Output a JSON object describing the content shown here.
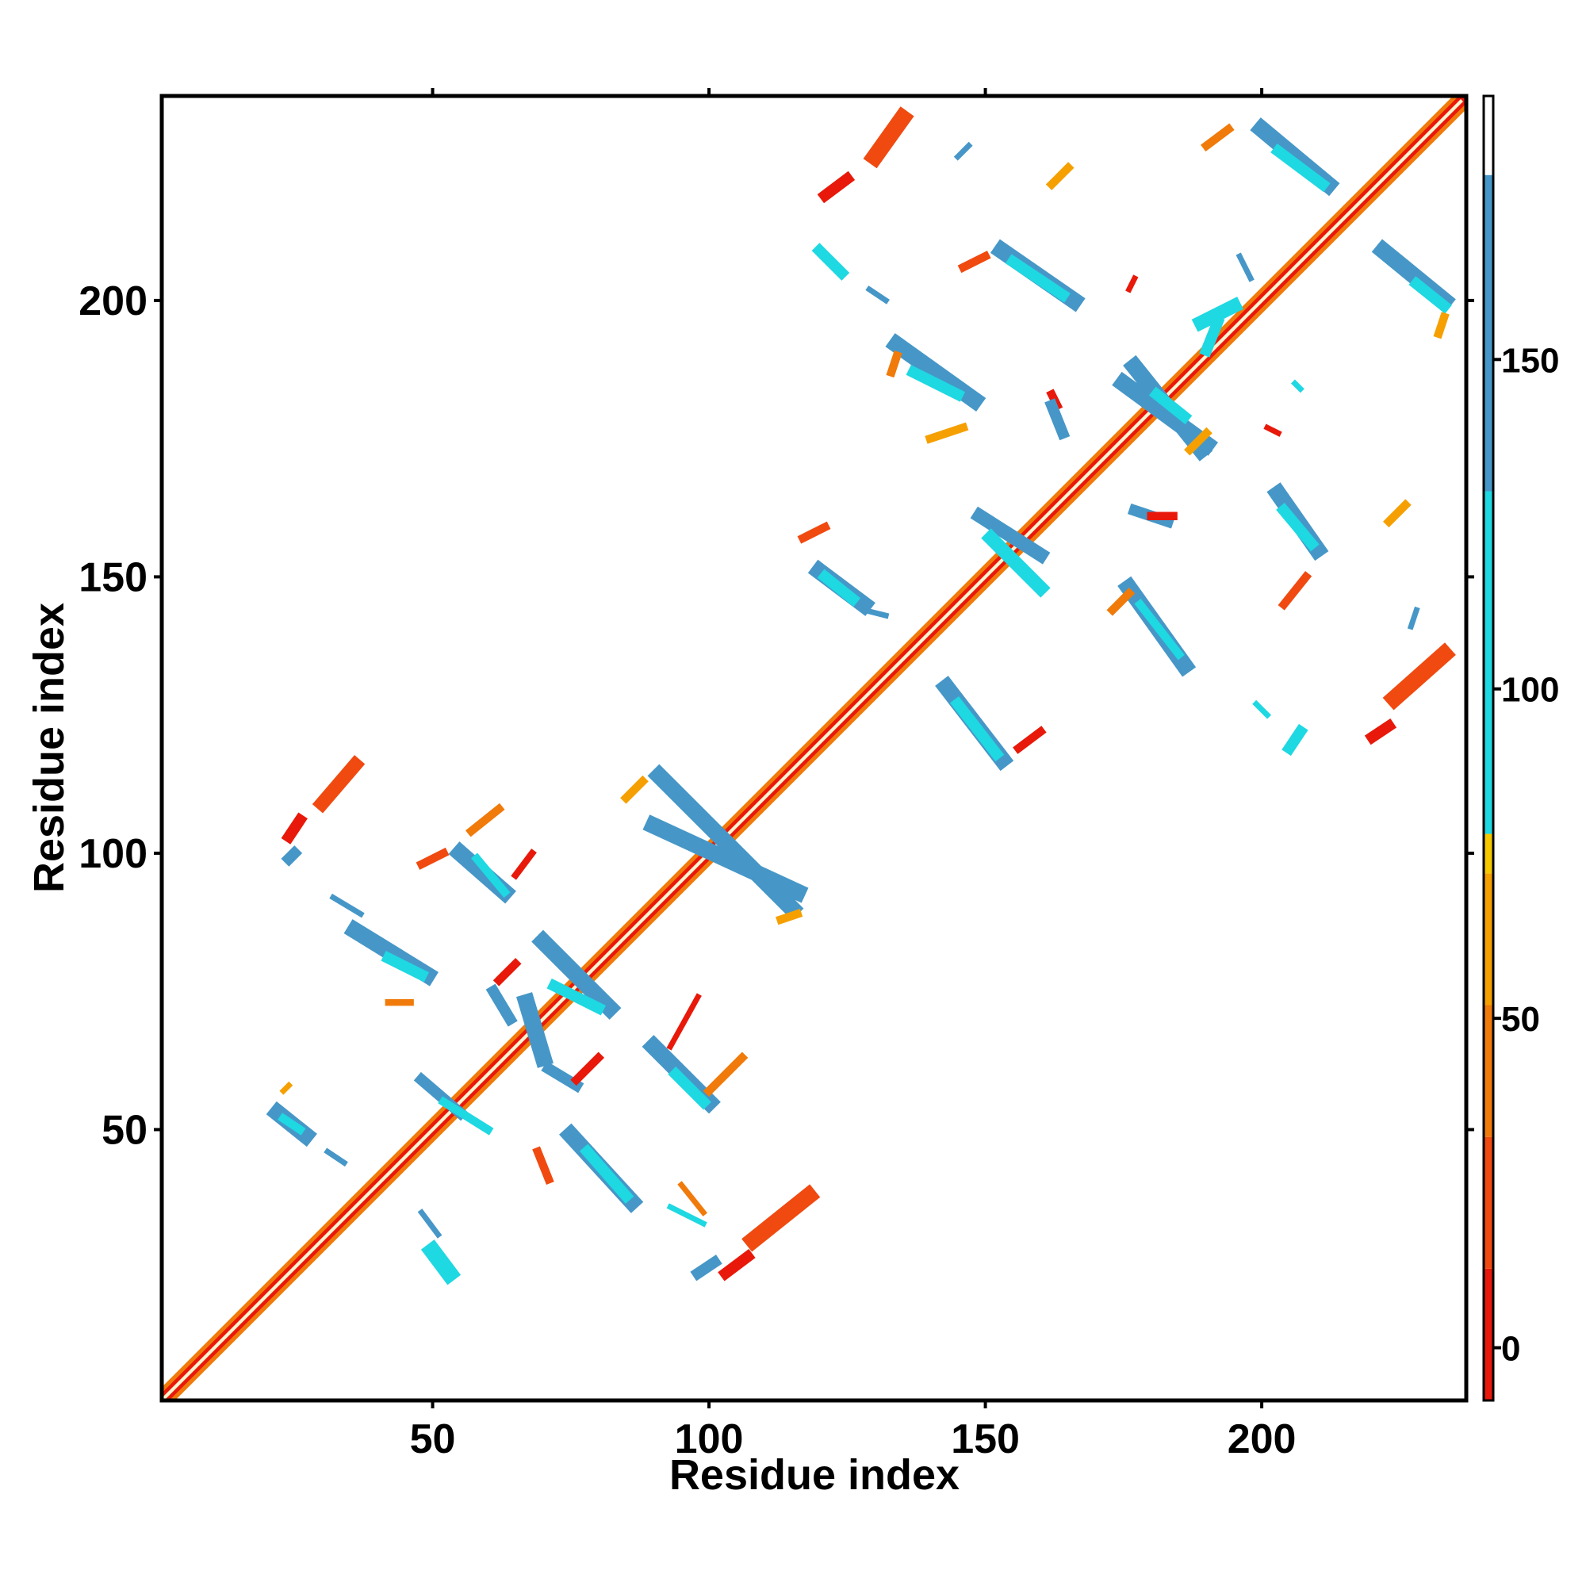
{
  "chart_data": {
    "type": "heatmap",
    "xlabel": "Residue index",
    "ylabel": "Residue index",
    "xlim": [
      1,
      237
    ],
    "ylim": [
      1,
      237
    ],
    "xticks": [
      50,
      100,
      150,
      200
    ],
    "yticks": [
      50,
      100,
      150,
      200
    ],
    "colorbar": {
      "range": [
        -8,
        190
      ],
      "ticks": [
        0,
        50,
        100,
        150
      ],
      "bands": [
        {
          "from": -8,
          "to": 12,
          "color": "#e8190a"
        },
        {
          "from": 12,
          "to": 32,
          "color": "#f04a10"
        },
        {
          "from": 32,
          "to": 52,
          "color": "#f07a0a"
        },
        {
          "from": 52,
          "to": 72,
          "color": "#f5a000"
        },
        {
          "from": 72,
          "to": 78,
          "color": "#f5c800"
        },
        {
          "from": 78,
          "to": 130,
          "color": "#1ed8e2"
        },
        {
          "from": 130,
          "to": 178,
          "color": "#4697c8"
        },
        {
          "from": 178,
          "to": 190,
          "color": "#ffffff"
        }
      ]
    },
    "diagonal": {
      "from": 1,
      "to": 236,
      "core_color": "#fff3cf",
      "inner_color": "#e8190a",
      "outer_color": "#f07a0a"
    },
    "segments": [
      {
        "from": [
          30,
          109
        ],
        "to": [
          36,
          116
        ],
        "width": 2.5,
        "color": "#f04a10"
      },
      {
        "from": [
          24,
          103
        ],
        "to": [
          26,
          106
        ],
        "width": 2,
        "color": "#e8190a"
      },
      {
        "from": [
          24,
          99
        ],
        "to": [
          25,
          100
        ],
        "width": 2,
        "color": "#4697c8"
      },
      {
        "from": [
          55,
          100
        ],
        "to": [
          63,
          93
        ],
        "width": 3,
        "color": "#4697c8"
      },
      {
        "from": [
          58,
          99
        ],
        "to": [
          63,
          93
        ],
        "width": 1.5,
        "color": "#1ed8e2"
      },
      {
        "from": [
          57,
          104
        ],
        "to": [
          62,
          108
        ],
        "width": 1.5,
        "color": "#f07a0a"
      },
      {
        "from": [
          48,
          98
        ],
        "to": [
          52,
          100
        ],
        "width": 1.5,
        "color": "#f04a10"
      },
      {
        "from": [
          65,
          96
        ],
        "to": [
          68,
          100
        ],
        "width": 1.2,
        "color": "#e8190a"
      },
      {
        "from": [
          36,
          86
        ],
        "to": [
          49,
          78
        ],
        "width": 3,
        "color": "#4697c8"
      },
      {
        "from": [
          42,
          81
        ],
        "to": [
          48,
          78
        ],
        "width": 2,
        "color": "#1ed8e2"
      },
      {
        "from": [
          32,
          92
        ],
        "to": [
          37,
          89
        ],
        "width": 1,
        "color": "#4697c8"
      },
      {
        "from": [
          42,
          73
        ],
        "to": [
          46,
          73
        ],
        "width": 1.2,
        "color": "#f07a0a"
      },
      {
        "from": [
          61,
          75
        ],
        "to": [
          64,
          70
        ],
        "width": 2,
        "color": "#4697c8"
      },
      {
        "from": [
          62,
          77
        ],
        "to": [
          65,
          80
        ],
        "width": 1.5,
        "color": "#e8190a"
      },
      {
        "from": [
          70,
          84
        ],
        "to": [
          82,
          72
        ],
        "width": 3,
        "color": "#4697c8"
      },
      {
        "from": [
          72,
          76
        ],
        "to": [
          80,
          72
        ],
        "width": 2,
        "color": "#1ed8e2"
      },
      {
        "from": [
          67,
          73
        ],
        "to": [
          70,
          63
        ],
        "width": 3,
        "color": "#4697c8"
      },
      {
        "from": [
          71,
          61
        ],
        "to": [
          76,
          58
        ],
        "width": 2,
        "color": "#4697c8"
      },
      {
        "from": [
          76,
          59
        ],
        "to": [
          80,
          63
        ],
        "width": 1.5,
        "color": "#e8190a"
      },
      {
        "from": [
          48,
          59
        ],
        "to": [
          55,
          53
        ],
        "width": 2,
        "color": "#4697c8"
      },
      {
        "from": [
          52,
          55
        ],
        "to": [
          60,
          50
        ],
        "width": 1.5,
        "color": "#1ed8e2"
      },
      {
        "from": [
          22,
          53
        ],
        "to": [
          27,
          49
        ],
        "width": 3,
        "color": "#4697c8"
      },
      {
        "from": [
          23,
          52
        ],
        "to": [
          26,
          50
        ],
        "width": 1.5,
        "color": "#1ed8e2"
      },
      {
        "from": [
          23,
          57
        ],
        "to": [
          24,
          58
        ],
        "width": 1,
        "color": "#f5a000"
      },
      {
        "from": [
          31,
          46
        ],
        "to": [
          34,
          44
        ],
        "width": 1,
        "color": "#4697c8"
      },
      {
        "from": [
          90,
          65
        ],
        "to": [
          100,
          55
        ],
        "width": 3,
        "color": "#4697c8"
      },
      {
        "from": [
          94,
          60
        ],
        "to": [
          99,
          55
        ],
        "width": 2,
        "color": "#1ed8e2"
      },
      {
        "from": [
          100,
          57
        ],
        "to": [
          106,
          63
        ],
        "width": 1.5,
        "color": "#f07a0a"
      },
      {
        "from": [
          93,
          65
        ],
        "to": [
          98,
          74
        ],
        "width": 1,
        "color": "#e8190a"
      },
      {
        "from": [
          75,
          49
        ],
        "to": [
          86,
          37
        ],
        "width": 3,
        "color": "#4697c8"
      },
      {
        "from": [
          78,
          46
        ],
        "to": [
          85,
          38
        ],
        "width": 2,
        "color": "#1ed8e2"
      },
      {
        "from": [
          69,
          46
        ],
        "to": [
          71,
          41
        ],
        "width": 1.5,
        "color": "#f04a10"
      },
      {
        "from": [
          95,
          40
        ],
        "to": [
          99,
          35
        ],
        "width": 1,
        "color": "#f07a0a"
      },
      {
        "from": [
          93,
          36
        ],
        "to": [
          99,
          33
        ],
        "width": 1,
        "color": "#1ed8e2"
      },
      {
        "from": [
          108,
          30
        ],
        "to": [
          118,
          38
        ],
        "width": 3,
        "color": "#f04a10"
      },
      {
        "from": [
          98,
          24
        ],
        "to": [
          101,
          26
        ],
        "width": 2,
        "color": "#4697c8"
      },
      {
        "from": [
          103,
          24
        ],
        "to": [
          107,
          27
        ],
        "width": 2,
        "color": "#e8190a"
      },
      {
        "from": [
          50,
          28
        ],
        "to": [
          53,
          24
        ],
        "width": 3,
        "color": "#1ed8e2"
      },
      {
        "from": [
          48,
          35
        ],
        "to": [
          51,
          31
        ],
        "width": 1,
        "color": "#4697c8"
      },
      {
        "from": [
          90,
          105
        ],
        "to": [
          116,
          93
        ],
        "width": 3,
        "color": "#4697c8"
      },
      {
        "from": [
          91,
          114
        ],
        "to": [
          115,
          90
        ],
        "width": 3,
        "color": "#4697c8"
      },
      {
        "from": [
          85,
          110
        ],
        "to": [
          88,
          113
        ],
        "width": 1.5,
        "color": "#f5a000"
      },
      {
        "from": [
          113,
          88
        ],
        "to": [
          116,
          89
        ],
        "width": 1.5,
        "color": "#f5a000"
      },
      {
        "from": [
          143,
          130
        ],
        "to": [
          153,
          117
        ],
        "width": 3,
        "color": "#4697c8"
      },
      {
        "from": [
          145,
          127
        ],
        "to": [
          152,
          118
        ],
        "width": 2,
        "color": "#1ed8e2"
      },
      {
        "from": [
          156,
          119
        ],
        "to": [
          160,
          122
        ],
        "width": 1.5,
        "color": "#e8190a"
      },
      {
        "from": [
          120,
          151
        ],
        "to": [
          128,
          145
        ],
        "width": 3,
        "color": "#4697c8"
      },
      {
        "from": [
          121,
          150
        ],
        "to": [
          126,
          146
        ],
        "width": 2,
        "color": "#1ed8e2"
      },
      {
        "from": [
          117,
          157
        ],
        "to": [
          121,
          159
        ],
        "width": 1.5,
        "color": "#f04a10"
      },
      {
        "from": [
          128,
          144
        ],
        "to": [
          132,
          143
        ],
        "width": 1,
        "color": "#4697c8"
      },
      {
        "from": [
          149,
          161
        ],
        "to": [
          160,
          154
        ],
        "width": 2.5,
        "color": "#4697c8"
      },
      {
        "from": [
          151,
          157
        ],
        "to": [
          160,
          148
        ],
        "width": 2.5,
        "color": "#1ed8e2"
      },
      {
        "from": [
          176,
          148
        ],
        "to": [
          186,
          134
        ],
        "width": 3,
        "color": "#4697c8"
      },
      {
        "from": [
          178,
          145
        ],
        "to": [
          185,
          136
        ],
        "width": 1.5,
        "color": "#1ed8e2"
      },
      {
        "from": [
          173,
          144
        ],
        "to": [
          176,
          147
        ],
        "width": 1.5,
        "color": "#f07a0a"
      },
      {
        "from": [
          203,
          165
        ],
        "to": [
          210,
          155
        ],
        "width": 3,
        "color": "#4697c8"
      },
      {
        "from": [
          204,
          162
        ],
        "to": [
          209,
          156
        ],
        "width": 2,
        "color": "#1ed8e2"
      },
      {
        "from": [
          177,
          162
        ],
        "to": [
          183,
          160
        ],
        "width": 2,
        "color": "#4697c8"
      },
      {
        "from": [
          180,
          161
        ],
        "to": [
          184,
          161
        ],
        "width": 1.5,
        "color": "#e8190a"
      },
      {
        "from": [
          223,
          160
        ],
        "to": [
          226,
          163
        ],
        "width": 1.5,
        "color": "#f5a000"
      },
      {
        "from": [
          204,
          145
        ],
        "to": [
          208,
          150
        ],
        "width": 1.5,
        "color": "#f04a10"
      },
      {
        "from": [
          224,
          128
        ],
        "to": [
          233,
          136
        ],
        "width": 3,
        "color": "#f04a10"
      },
      {
        "from": [
          220,
          121
        ],
        "to": [
          223,
          123
        ],
        "width": 2,
        "color": "#e8190a"
      },
      {
        "from": [
          205,
          119
        ],
        "to": [
          207,
          122
        ],
        "width": 2,
        "color": "#1ed8e2"
      },
      {
        "from": [
          199,
          127
        ],
        "to": [
          201,
          125
        ],
        "width": 1,
        "color": "#1ed8e2"
      },
      {
        "from": [
          227,
          141
        ],
        "to": [
          228,
          144
        ],
        "width": 1,
        "color": "#4697c8"
      },
      {
        "from": [
          134,
          192
        ],
        "to": [
          148,
          182
        ],
        "width": 3,
        "color": "#4697c8"
      },
      {
        "from": [
          137,
          187
        ],
        "to": [
          145,
          183
        ],
        "width": 2,
        "color": "#1ed8e2"
      },
      {
        "from": [
          133,
          187
        ],
        "to": [
          134,
          190
        ],
        "width": 1.5,
        "color": "#f07a0a"
      },
      {
        "from": [
          140,
          175
        ],
        "to": [
          146,
          177
        ],
        "width": 1.5,
        "color": "#f5a000"
      },
      {
        "from": [
          162,
          183
        ],
        "to": [
          163,
          181
        ],
        "width": 1.5,
        "color": "#e8190a"
      },
      {
        "from": [
          162,
          181
        ],
        "to": [
          164,
          176
        ],
        "width": 2,
        "color": "#4697c8"
      },
      {
        "from": [
          153,
          209
        ],
        "to": [
          166,
          200
        ],
        "width": 3,
        "color": "#4697c8"
      },
      {
        "from": [
          155,
          207
        ],
        "to": [
          164,
          201
        ],
        "width": 2,
        "color": "#1ed8e2"
      },
      {
        "from": [
          146,
          206
        ],
        "to": [
          150,
          208
        ],
        "width": 1.5,
        "color": "#f04a10"
      },
      {
        "from": [
          120,
          209
        ],
        "to": [
          124,
          205
        ],
        "width": 2,
        "color": "#1ed8e2"
      },
      {
        "from": [
          129,
          202
        ],
        "to": [
          132,
          200
        ],
        "width": 1,
        "color": "#4697c8"
      },
      {
        "from": [
          175,
          185
        ],
        "to": [
          190,
          174
        ],
        "width": 3,
        "color": "#4697c8"
      },
      {
        "from": [
          177,
          188
        ],
        "to": [
          189,
          173
        ],
        "width": 3,
        "color": "#4697c8"
      },
      {
        "from": [
          181,
          183
        ],
        "to": [
          186,
          179
        ],
        "width": 2,
        "color": "#1ed8e2"
      },
      {
        "from": [
          187,
          173
        ],
        "to": [
          190,
          176
        ],
        "width": 1.5,
        "color": "#f5a000"
      },
      {
        "from": [
          189,
          196
        ],
        "to": [
          195,
          199
        ],
        "width": 2.5,
        "color": "#1ed8e2"
      },
      {
        "from": [
          190,
          191
        ],
        "to": [
          192,
          196
        ],
        "width": 2,
        "color": "#1ed8e2"
      },
      {
        "from": [
          201,
          177
        ],
        "to": [
          203,
          176
        ],
        "width": 1,
        "color": "#e8190a"
      },
      {
        "from": [
          206,
          185
        ],
        "to": [
          207,
          184
        ],
        "width": 1,
        "color": "#1ed8e2"
      },
      {
        "from": [
          130,
          226
        ],
        "to": [
          135,
          233
        ],
        "width": 3,
        "color": "#f04a10"
      },
      {
        "from": [
          121,
          219
        ],
        "to": [
          125,
          222
        ],
        "width": 2,
        "color": "#e8190a"
      },
      {
        "from": [
          145,
          226
        ],
        "to": [
          147,
          228
        ],
        "width": 1,
        "color": "#4697c8"
      },
      {
        "from": [
          162,
          221
        ],
        "to": [
          165,
          224
        ],
        "width": 1.5,
        "color": "#f5a000"
      },
      {
        "from": [
          200,
          231
        ],
        "to": [
          212,
          221
        ],
        "width": 3,
        "color": "#4697c8"
      },
      {
        "from": [
          203,
          227
        ],
        "to": [
          211,
          221
        ],
        "width": 2,
        "color": "#1ed8e2"
      },
      {
        "from": [
          190,
          228
        ],
        "to": [
          194,
          231
        ],
        "width": 1.5,
        "color": "#f07a0a"
      },
      {
        "from": [
          222,
          209
        ],
        "to": [
          233,
          200
        ],
        "width": 3,
        "color": "#4697c8"
      },
      {
        "from": [
          228,
          203
        ],
        "to": [
          233,
          199
        ],
        "width": 2,
        "color": "#1ed8e2"
      },
      {
        "from": [
          232,
          194
        ],
        "to": [
          233,
          197
        ],
        "width": 1.5,
        "color": "#f5a000"
      },
      {
        "from": [
          196,
          208
        ],
        "to": [
          198,
          204
        ],
        "width": 1,
        "color": "#4697c8"
      },
      {
        "from": [
          176,
          202
        ],
        "to": [
          177,
          204
        ],
        "width": 1,
        "color": "#e8190a"
      }
    ]
  }
}
